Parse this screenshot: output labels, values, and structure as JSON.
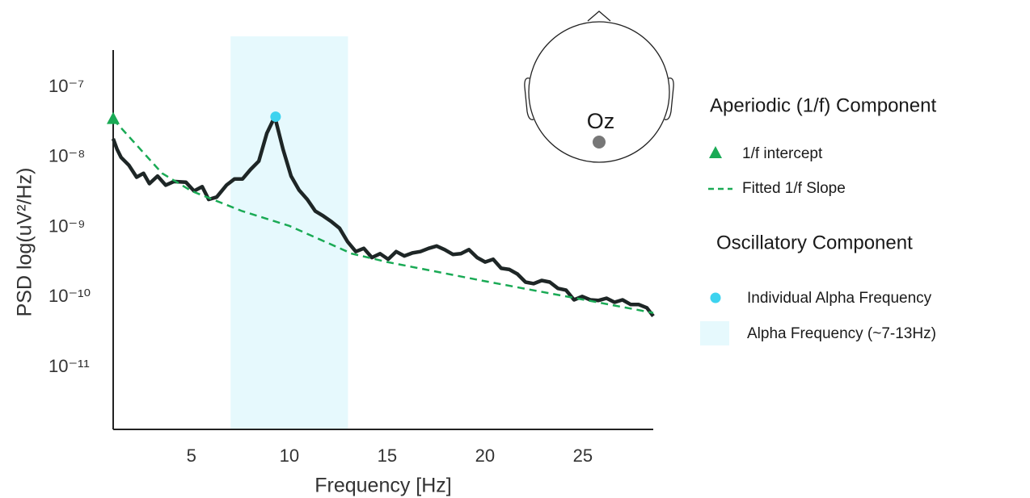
{
  "chart_data": {
    "type": "line",
    "xlabel": "Frequency [Hz]",
    "ylabel": "PSD log(uV²/Hz)",
    "xlim": [
      1,
      28.6
    ],
    "ylim": [
      1.3e-12,
      3.4e-07
    ],
    "log_y": true,
    "grid": false,
    "xticks": [
      5,
      10,
      15,
      20,
      25
    ],
    "yticks": [
      {
        "value": 1e-07,
        "label": "10⁻⁷"
      },
      {
        "value": 1e-08,
        "label": "10⁻⁸"
      },
      {
        "value": 1e-09,
        "label": "10⁻⁹"
      },
      {
        "value": 1e-10,
        "label": "10⁻¹⁰"
      },
      {
        "value": 1e-11,
        "label": "10⁻¹¹"
      }
    ],
    "series": [
      {
        "color": "#1e2626",
        "x": [
          1,
          1.2,
          1.4,
          1.8,
          2.2,
          2.55,
          2.85,
          3.27,
          3.68,
          4.1,
          4.72,
          5.13,
          5.55,
          5.88,
          6.29,
          6.79,
          7.2,
          7.61,
          8.02,
          8.44,
          8.85,
          9.26,
          9.68,
          10.09,
          10.5,
          10.92,
          11.33,
          11.74,
          12.16,
          12.57,
          12.98,
          13.4,
          13.81,
          14.22,
          14.64,
          15.05,
          15.46,
          15.88,
          16.29,
          16.7,
          17.12,
          17.53,
          17.94,
          18.36,
          18.77,
          19.18,
          19.6,
          20.01,
          20.42,
          20.83,
          21.25,
          21.66,
          22.07,
          22.49,
          22.9,
          23.31,
          23.73,
          24.14,
          24.55,
          24.97,
          25.38,
          25.79,
          26.21,
          26.62,
          27.03,
          27.45,
          27.86,
          28.27,
          28.6
        ],
        "values": [
          1.84e-08,
          1.3e-08,
          1e-08,
          7.7e-09,
          5.2e-09,
          5.9e-09,
          4.2e-09,
          5.4e-09,
          4e-09,
          4.5e-09,
          4.4e-09,
          3.3e-09,
          3.8e-09,
          2.5e-09,
          2.7e-09,
          4e-09,
          4.9e-09,
          4.9e-09,
          6.7e-09,
          8.8e-09,
          2.2e-08,
          3.8e-08,
          1.3e-08,
          5.4e-09,
          3.4e-09,
          2.5e-09,
          1.7e-09,
          1.45e-09,
          1.2e-09,
          9.7e-10,
          6.2e-10,
          4.5e-10,
          5e-10,
          3.7e-10,
          4.2e-10,
          3.5e-10,
          4.5e-10,
          3.9e-10,
          4.3e-10,
          4.5e-10,
          5e-10,
          5.4e-10,
          4.8e-10,
          4.1e-10,
          4.2e-10,
          4.8e-10,
          3.7e-10,
          3.2e-10,
          3.5e-10,
          2.6e-10,
          2.5e-10,
          2.15e-10,
          1.65e-10,
          1.57e-10,
          1.74e-10,
          1.65e-10,
          1.34e-10,
          1.27e-10,
          9.2e-11,
          1.03e-10,
          9.2e-11,
          9e-11,
          9.7e-11,
          8.5e-11,
          9.2e-11,
          7.9e-11,
          7.9e-11,
          7.1e-11,
          5.4e-11
        ]
      },
      {
        "name": "Fitted 1/f Slope",
        "color": "#1aaa55",
        "dashed": true,
        "x": [
          1,
          3.5,
          5,
          7.6,
          10,
          13.2,
          15,
          20,
          25,
          28.6
        ],
        "values": [
          3.5e-08,
          5.9e-09,
          3.3e-09,
          1.7e-09,
          1.05e-09,
          4.2e-10,
          3.2e-10,
          1.7e-10,
          9.3e-11,
          6e-11
        ]
      }
    ],
    "points": [
      {
        "name": "1/f intercept",
        "marker": "triangle",
        "color": "#1aaa55",
        "x": 1,
        "value": 3.5e-08
      },
      {
        "name": "Individual Alpha Frequency",
        "marker": "circle",
        "color": "#3dd3ef",
        "x": 9.3,
        "value": 3.8e-08
      }
    ],
    "band": {
      "name": "Alpha Frequency (~7-13Hz)",
      "range": [
        7,
        13
      ],
      "color": "#e6f9fd"
    },
    "legend_groups": [
      "Aperiodic (1/f) Component",
      "Oscillatory Component"
    ]
  },
  "head": {
    "electrode_label": "Oz"
  }
}
